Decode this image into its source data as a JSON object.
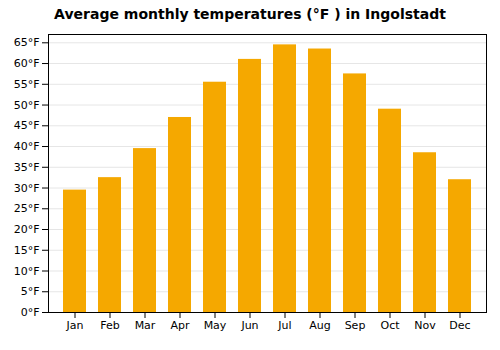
{
  "chart_data": {
    "type": "bar",
    "title": "Average monthly temperatures (°F ) in Ingolstadt",
    "categories": [
      "Jan",
      "Feb",
      "Mar",
      "Apr",
      "May",
      "Jun",
      "Jul",
      "Aug",
      "Sep",
      "Oct",
      "Nov",
      "Dec"
    ],
    "values": [
      29.5,
      32.5,
      39.5,
      47.0,
      55.5,
      61.0,
      64.5,
      63.5,
      57.5,
      49.0,
      38.5,
      32.0
    ],
    "color": "#F5A800",
    "ylim": [
      0,
      67
    ],
    "yticks": [
      {
        "value": 0,
        "label": "0°F"
      },
      {
        "value": 5,
        "label": "5°F"
      },
      {
        "value": 10,
        "label": "10°F"
      },
      {
        "value": 15,
        "label": "15°F"
      },
      {
        "value": 20,
        "label": "20°F"
      },
      {
        "value": 25,
        "label": "25°F"
      },
      {
        "value": 30,
        "label": "30°F"
      },
      {
        "value": 35,
        "label": "35°F"
      },
      {
        "value": 40,
        "label": "40°F"
      },
      {
        "value": 45,
        "label": "45°F"
      },
      {
        "value": 50,
        "label": "50°F"
      },
      {
        "value": 55,
        "label": "55°F"
      },
      {
        "value": 60,
        "label": "60°F"
      },
      {
        "value": 65,
        "label": "65°F"
      }
    ],
    "grid": true
  }
}
